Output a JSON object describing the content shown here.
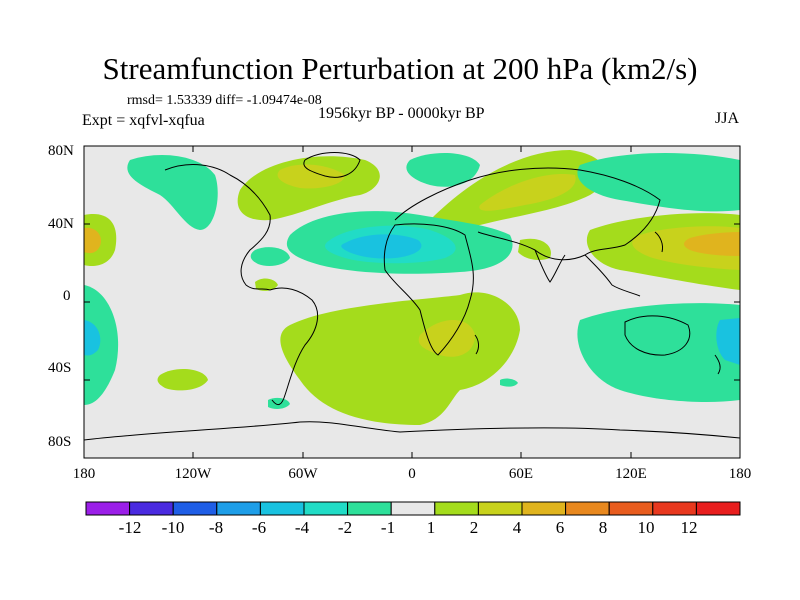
{
  "title": "Streamfunction Perturbation at 200 hPa (km2/s)",
  "stats_line": "rmsd= 1.53339  diff= -1.09474e-08",
  "experiment": "Expt = xqfvl-xqfua",
  "period": "1956kyr BP - 0000kyr BP",
  "season": "JJA",
  "y_ticks": [
    "80N",
    "40N",
    "0",
    "40S",
    "80S"
  ],
  "x_ticks": [
    "180",
    "120W",
    "60W",
    "0",
    "60E",
    "120E",
    "180"
  ],
  "colorbar": {
    "labels": [
      "-12",
      "-10",
      "-8",
      "-6",
      "-4",
      "-2",
      "-1",
      "1",
      "2",
      "4",
      "6",
      "8",
      "10",
      "12"
    ],
    "colors": [
      "#9b1fe8",
      "#4a2ae0",
      "#1f5ee6",
      "#1e9ee8",
      "#19c2e0",
      "#21dcc6",
      "#2ee09a",
      "#e8e8e8",
      "#a4dc1c",
      "#c8d21c",
      "#e0b41e",
      "#e8881e",
      "#e85c1e",
      "#e8381e",
      "#e81e1e"
    ]
  },
  "map_colors": {
    "neutral": "#e8e8e8",
    "pos1": "#a4dc1c",
    "pos2": "#c8d21c",
    "pos3": "#e0b41e",
    "pos4": "#e8881e",
    "neg1": "#2ee09a",
    "neg2": "#21dcc6",
    "neg3": "#19c2e0",
    "neg4": "#1e9ee8"
  }
}
